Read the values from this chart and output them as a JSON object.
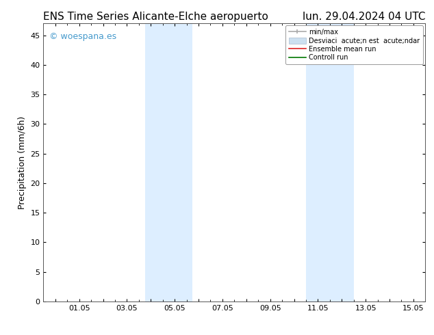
{
  "title_left": "ENS Time Series Alicante-Elche aeropuerto",
  "title_right": "lun. 29.04.2024 04 UTC",
  "ylabel": "Precipitation (mm/6h)",
  "background_color": "#ffffff",
  "plot_bg_color": "#ffffff",
  "xlim": [
    -0.5,
    15.5
  ],
  "ylim": [
    0,
    47
  ],
  "yticks": [
    0,
    5,
    10,
    15,
    20,
    25,
    30,
    35,
    40,
    45
  ],
  "xtick_positions": [
    0,
    1,
    2,
    3,
    4,
    5,
    6,
    7,
    8,
    9,
    10,
    11,
    12,
    13,
    14,
    15
  ],
  "xtick_labels": [
    "",
    "01.05",
    "",
    "03.05",
    "",
    "05.05",
    "",
    "07.05",
    "",
    "09.05",
    "",
    "11.05",
    "",
    "13.05",
    "",
    "15.05"
  ],
  "shaded_regions": [
    {
      "xmin": 3.75,
      "xmax": 5.75,
      "color": "#ddeeff"
    },
    {
      "xmin": 10.5,
      "xmax": 12.5,
      "color": "#ddeeff"
    }
  ],
  "watermark_text": "© woespana.es",
  "watermark_color": "#4499cc",
  "legend_items": [
    {
      "label": "min/max",
      "color": "#aaaaaa",
      "lw": 1.2,
      "style": "line"
    },
    {
      "label": "Desviaci  acute;n est  acute;ndar",
      "color": "#cce0f0",
      "lw": 7,
      "style": "line"
    },
    {
      "label": "Ensemble mean run",
      "color": "#dd2222",
      "lw": 1.2,
      "style": "line"
    },
    {
      "label": "Controll run",
      "color": "#007700",
      "lw": 1.2,
      "style": "line"
    }
  ],
  "title_fontsize": 11,
  "axis_label_fontsize": 9,
  "tick_fontsize": 8,
  "watermark_fontsize": 9,
  "legend_fontsize": 7
}
